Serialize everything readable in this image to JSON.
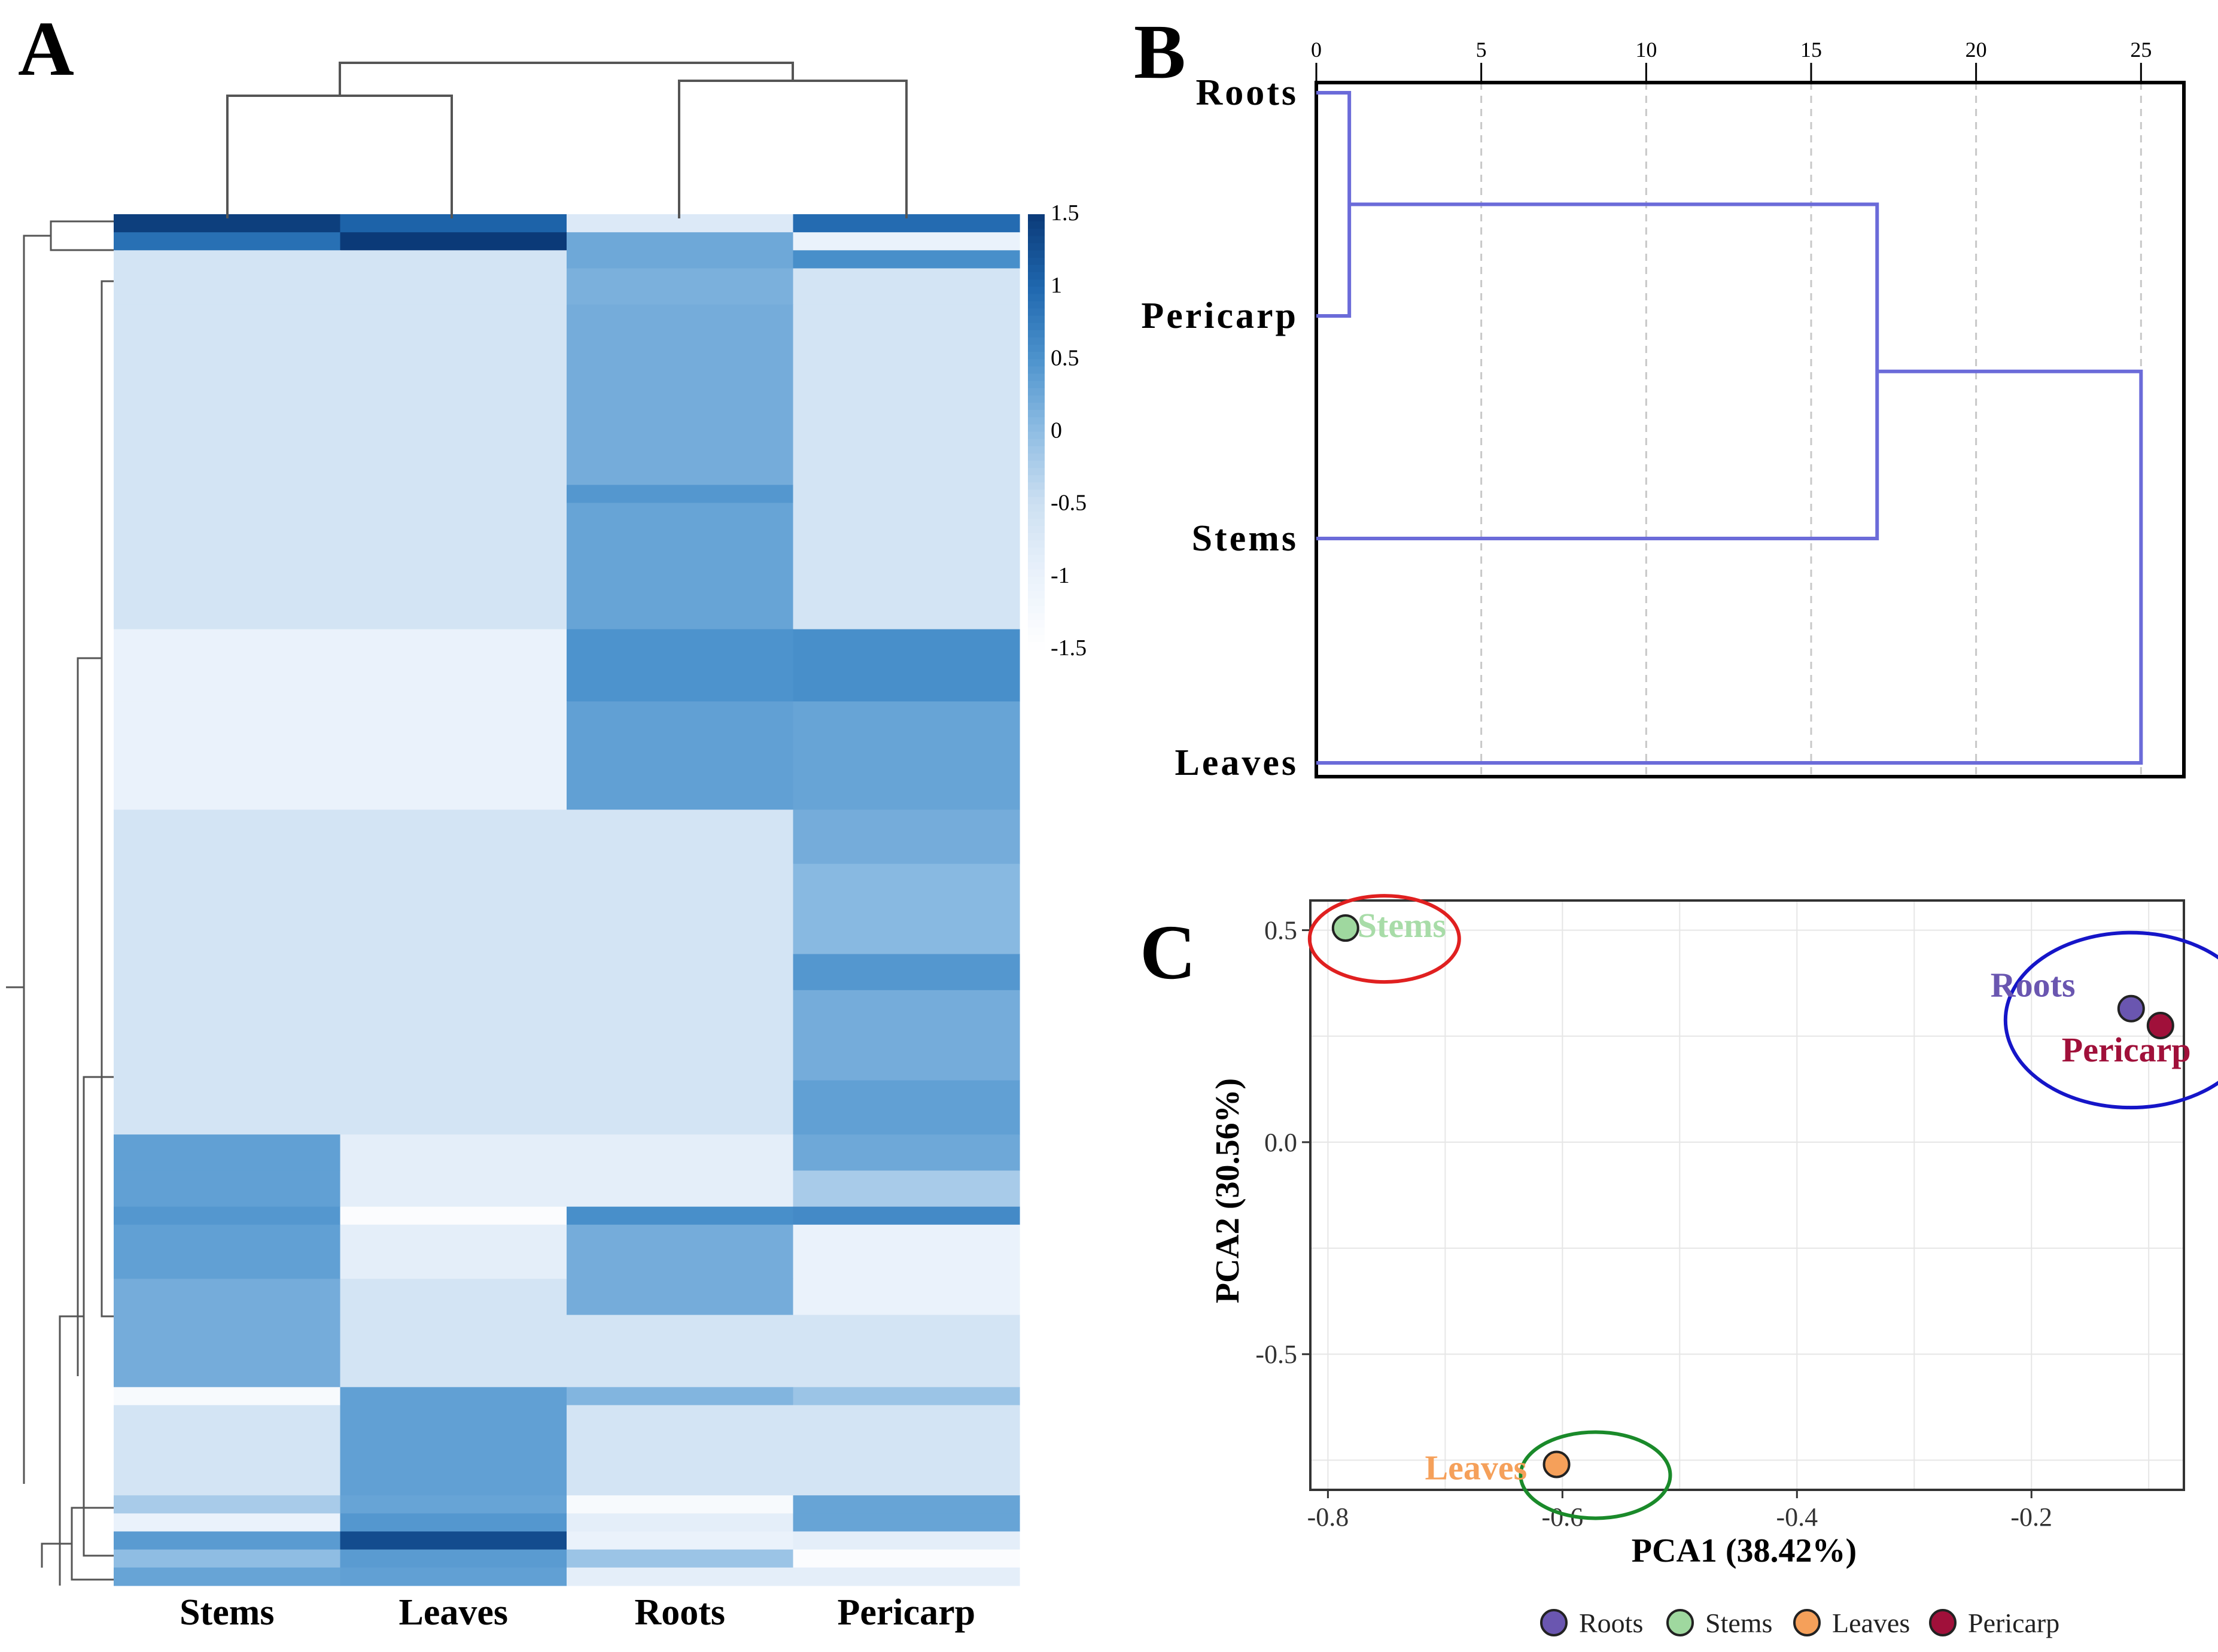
{
  "panels": {
    "A": {
      "letter": "A",
      "chart_data": {
        "type": "heatmap",
        "columns": [
          "Stems",
          "Leaves",
          "Roots",
          "Pericarp"
        ],
        "colorbar_ticks": [
          "1.5",
          "1",
          "0.5",
          "0",
          "-0.5",
          "-1",
          "-1.5"
        ],
        "colorbar_range": [
          -1.5,
          1.5
        ],
        "color_low": "#ffffff",
        "color_high": "#0b3a78",
        "row_blocks": [
          {
            "rows": 1,
            "values": [
              1.45,
              1.05,
              -0.75,
              0.95
            ]
          },
          {
            "rows": 1,
            "values": [
              0.9,
              1.5,
              0.25,
              -1.0
            ]
          },
          {
            "rows": 1,
            "values": [
              -0.6,
              -0.6,
              0.25,
              0.55
            ]
          },
          {
            "rows": 2,
            "values": [
              -0.6,
              -0.6,
              0.15,
              -0.6
            ]
          },
          {
            "rows": 10,
            "values": [
              -0.6,
              -0.6,
              0.2,
              -0.6
            ]
          },
          {
            "rows": 1,
            "values": [
              -0.6,
              -0.6,
              0.45,
              -0.6
            ]
          },
          {
            "rows": 7,
            "values": [
              -0.6,
              -0.6,
              0.3,
              -0.6
            ]
          },
          {
            "rows": 4,
            "values": [
              -1.0,
              -1.0,
              0.5,
              0.55
            ]
          },
          {
            "rows": 6,
            "values": [
              -1.0,
              -1.0,
              0.35,
              0.3
            ]
          },
          {
            "rows": 3,
            "values": [
              -0.6,
              -0.6,
              -0.6,
              0.2
            ]
          },
          {
            "rows": 5,
            "values": [
              -0.6,
              -0.6,
              -0.6,
              0.05
            ]
          },
          {
            "rows": 2,
            "values": [
              -0.6,
              -0.6,
              -0.6,
              0.45
            ]
          },
          {
            "rows": 5,
            "values": [
              -0.6,
              -0.6,
              -0.6,
              0.2
            ]
          },
          {
            "rows": 3,
            "values": [
              -0.6,
              -0.6,
              -0.6,
              0.35
            ]
          },
          {
            "rows": 2,
            "values": [
              0.35,
              -0.9,
              -0.9,
              0.25
            ]
          },
          {
            "rows": 2,
            "values": [
              0.35,
              -0.9,
              -0.9,
              -0.2
            ]
          },
          {
            "rows": 1,
            "values": [
              0.45,
              -1.4,
              0.55,
              0.6
            ]
          },
          {
            "rows": 3,
            "values": [
              0.35,
              -0.9,
              0.2,
              -1.0
            ]
          },
          {
            "rows": 2,
            "values": [
              0.2,
              -0.6,
              0.2,
              -1.0
            ]
          },
          {
            "rows": 4,
            "values": [
              0.2,
              -0.6,
              -0.6,
              -0.6
            ]
          },
          {
            "rows": 1,
            "values": [
              -1.3,
              0.35,
              0.1,
              -0.1
            ]
          },
          {
            "rows": 5,
            "values": [
              -0.6,
              0.35,
              -0.6,
              -0.6
            ]
          },
          {
            "rows": 1,
            "values": [
              -0.2,
              0.3,
              -1.3,
              0.3
            ]
          },
          {
            "rows": 1,
            "values": [
              -1.0,
              0.45,
              -0.9,
              0.3
            ]
          },
          {
            "rows": 1,
            "values": [
              0.4,
              1.3,
              -1.0,
              -0.9
            ]
          },
          {
            "rows": 1,
            "values": [
              0.0,
              0.4,
              -0.1,
              -1.4
            ]
          },
          {
            "rows": 1,
            "values": [
              0.3,
              0.35,
              -0.9,
              -0.9
            ]
          }
        ]
      }
    },
    "B": {
      "letter": "B",
      "chart_data": {
        "type": "dendrogram",
        "x_ticks": [
          0,
          5,
          10,
          15,
          20,
          25
        ],
        "xlim": [
          0,
          26.3
        ],
        "leaves": [
          "Roots",
          "Pericarp",
          "Stems",
          "Leaves"
        ],
        "merges": [
          {
            "left": "Roots",
            "right": "Pericarp",
            "height": 1.0
          },
          {
            "left": "Roots+Pericarp",
            "right": "Stems",
            "height": 17.0
          },
          {
            "left": "Roots+Pericarp+Stems",
            "right": "Leaves",
            "height": 25.0
          }
        ],
        "line_color": "#6b6bd9",
        "grid": "dashed vertical"
      }
    },
    "C": {
      "letter": "C",
      "chart_data": {
        "type": "scatter",
        "xlabel": "PCA1 (38.42%)",
        "ylabel": "PCA2 (30.56%)",
        "xlim": [
          -0.815,
          -0.07
        ],
        "ylim": [
          -0.82,
          0.57
        ],
        "x_ticks": [
          -0.8,
          -0.6,
          -0.4,
          -0.2
        ],
        "x_tick_labels": [
          "-0.8",
          "-0.6",
          "-0.4",
          "-0.2"
        ],
        "y_ticks": [
          0.5,
          0.0,
          -0.5
        ],
        "y_tick_labels": [
          "0.5",
          "0.0",
          "-0.5"
        ],
        "points": [
          {
            "name": "Stems",
            "x": -0.785,
            "y": 0.505,
            "color": "#9fd89f"
          },
          {
            "name": "Roots",
            "x": -0.115,
            "y": 0.315,
            "color": "#6a56b0"
          },
          {
            "name": "Pericarp",
            "x": -0.09,
            "y": 0.275,
            "color": "#a0103a"
          },
          {
            "name": "Leaves",
            "x": -0.605,
            "y": -0.76,
            "color": "#f5a05a"
          }
        ],
        "point_labels": [
          {
            "text": "Stems",
            "color": "#a8dca8"
          },
          {
            "text": "Roots",
            "color": "#6a56b0"
          },
          {
            "text": "Pericarp",
            "color": "#a0103a"
          },
          {
            "text": "Leaves",
            "color": "#f5a05a"
          }
        ],
        "groups": [
          {
            "members": [
              "Stems"
            ],
            "color": "#e02020"
          },
          {
            "members": [
              "Roots",
              "Pericarp"
            ],
            "color": "#1515c8"
          },
          {
            "members": [
              "Leaves"
            ],
            "color": "#1a8a2a"
          }
        ],
        "legend": {
          "placement": "bottom",
          "entries": [
            {
              "label": "Roots",
              "color": "#6a56b0"
            },
            {
              "label": "Stems",
              "color": "#9fd89f"
            },
            {
              "label": "Leaves",
              "color": "#f5a05a"
            },
            {
              "label": "Pericarp",
              "color": "#a0103a"
            }
          ]
        },
        "grid": true
      }
    }
  }
}
